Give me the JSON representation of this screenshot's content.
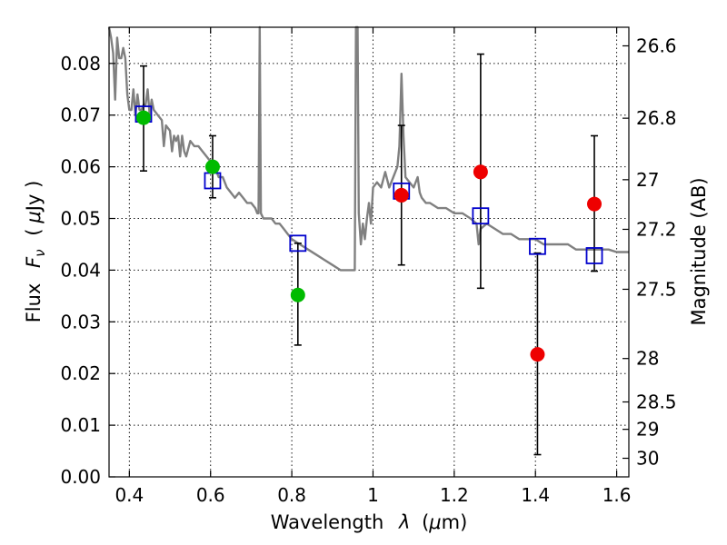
{
  "chart_data": {
    "type": "scatter",
    "xlabel_prefix": "Wavelength",
    "xlabel_symbol": "λ",
    "xlabel_unit_pre": "(",
    "xlabel_unit_mu": "μ",
    "xlabel_unit_post": "m)",
    "ylabel_prefix": "Flux",
    "ylabel_symbol": "F",
    "ylabel_symbol_sub": "ν",
    "ylabel_unit_pre": "(",
    "ylabel_unit_mu": "μ",
    "ylabel_unit_post": "Jy )",
    "ylabel_right": "Magnitude (AB)",
    "xlim": [
      0.35,
      1.63
    ],
    "ylim": [
      0.0,
      0.087
    ],
    "x_ticks": [
      {
        "value": 0.4,
        "label": "0.4"
      },
      {
        "value": 0.6,
        "label": "0.6"
      },
      {
        "value": 0.8,
        "label": "0.8"
      },
      {
        "value": 1.0,
        "label": "1"
      },
      {
        "value": 1.2,
        "label": "1.2"
      },
      {
        "value": 1.4,
        "label": "1.4"
      },
      {
        "value": 1.6,
        "label": "1.6"
      }
    ],
    "y_ticks": [
      {
        "value": 0.0,
        "label": "0.00"
      },
      {
        "value": 0.01,
        "label": "0.01"
      },
      {
        "value": 0.02,
        "label": "0.02"
      },
      {
        "value": 0.03,
        "label": "0.03"
      },
      {
        "value": 0.04,
        "label": "0.04"
      },
      {
        "value": 0.05,
        "label": "0.05"
      },
      {
        "value": 0.06,
        "label": "0.06"
      },
      {
        "value": 0.07,
        "label": "0.07"
      },
      {
        "value": 0.08,
        "label": "0.08"
      }
    ],
    "right_ticks": [
      {
        "flux": 0.0834,
        "label": "26.6"
      },
      {
        "flux": 0.0694,
        "label": "26.8"
      },
      {
        "flux": 0.0575,
        "label": "27"
      },
      {
        "flux": 0.0479,
        "label": "27.2"
      },
      {
        "flux": 0.0363,
        "label": "27.5"
      },
      {
        "flux": 0.0229,
        "label": "28"
      },
      {
        "flux": 0.0145,
        "label": "28.5"
      },
      {
        "flux": 0.0092,
        "label": "29"
      },
      {
        "flux": 0.0036,
        "label": "30"
      }
    ],
    "grid": true,
    "series": [
      {
        "kind": "line",
        "color": "#808080",
        "points": [
          [
            0.35,
            0.088
          ],
          [
            0.355,
            0.085
          ],
          [
            0.36,
            0.082
          ],
          [
            0.365,
            0.073
          ],
          [
            0.37,
            0.085
          ],
          [
            0.375,
            0.081
          ],
          [
            0.38,
            0.081
          ],
          [
            0.385,
            0.083
          ],
          [
            0.39,
            0.081
          ],
          [
            0.395,
            0.074
          ],
          [
            0.4,
            0.071
          ],
          [
            0.405,
            0.071
          ],
          [
            0.41,
            0.075
          ],
          [
            0.415,
            0.07
          ],
          [
            0.42,
            0.074
          ],
          [
            0.425,
            0.071
          ],
          [
            0.43,
            0.071
          ],
          [
            0.435,
            0.072
          ],
          [
            0.44,
            0.072
          ],
          [
            0.445,
            0.075
          ],
          [
            0.45,
            0.07
          ],
          [
            0.455,
            0.073
          ],
          [
            0.46,
            0.071
          ],
          [
            0.47,
            0.07
          ],
          [
            0.48,
            0.069
          ],
          [
            0.485,
            0.064
          ],
          [
            0.49,
            0.068
          ],
          [
            0.5,
            0.067
          ],
          [
            0.505,
            0.063
          ],
          [
            0.51,
            0.066
          ],
          [
            0.515,
            0.065
          ],
          [
            0.52,
            0.066
          ],
          [
            0.525,
            0.062
          ],
          [
            0.53,
            0.066
          ],
          [
            0.535,
            0.063
          ],
          [
            0.54,
            0.062
          ],
          [
            0.55,
            0.065
          ],
          [
            0.56,
            0.064
          ],
          [
            0.57,
            0.064
          ],
          [
            0.58,
            0.063
          ],
          [
            0.59,
            0.062
          ],
          [
            0.6,
            0.061
          ],
          [
            0.61,
            0.06
          ],
          [
            0.62,
            0.058
          ],
          [
            0.63,
            0.058
          ],
          [
            0.64,
            0.056
          ],
          [
            0.65,
            0.055
          ],
          [
            0.66,
            0.054
          ],
          [
            0.67,
            0.055
          ],
          [
            0.68,
            0.054
          ],
          [
            0.69,
            0.053
          ],
          [
            0.7,
            0.053
          ],
          [
            0.71,
            0.052
          ],
          [
            0.715,
            0.051
          ],
          [
            0.718,
            0.051
          ],
          [
            0.721,
            0.088
          ],
          [
            0.724,
            0.051
          ],
          [
            0.73,
            0.05
          ],
          [
            0.74,
            0.05
          ],
          [
            0.75,
            0.05
          ],
          [
            0.76,
            0.049
          ],
          [
            0.77,
            0.049
          ],
          [
            0.78,
            0.048
          ],
          [
            0.79,
            0.047
          ],
          [
            0.8,
            0.046
          ],
          [
            0.82,
            0.045
          ],
          [
            0.84,
            0.044
          ],
          [
            0.86,
            0.043
          ],
          [
            0.88,
            0.042
          ],
          [
            0.9,
            0.041
          ],
          [
            0.92,
            0.04
          ],
          [
            0.94,
            0.04
          ],
          [
            0.955,
            0.04
          ],
          [
            0.958,
            0.088
          ],
          [
            0.962,
            0.088
          ],
          [
            0.965,
            0.051
          ],
          [
            0.97,
            0.045
          ],
          [
            0.975,
            0.049
          ],
          [
            0.98,
            0.046
          ],
          [
            0.985,
            0.05
          ],
          [
            0.99,
            0.053
          ],
          [
            0.995,
            0.049
          ],
          [
            1.0,
            0.056
          ],
          [
            1.01,
            0.057
          ],
          [
            1.02,
            0.056
          ],
          [
            1.03,
            0.059
          ],
          [
            1.04,
            0.056
          ],
          [
            1.05,
            0.058
          ],
          [
            1.06,
            0.06
          ],
          [
            1.065,
            0.064
          ],
          [
            1.07,
            0.078
          ],
          [
            1.075,
            0.066
          ],
          [
            1.08,
            0.058
          ],
          [
            1.09,
            0.057
          ],
          [
            1.1,
            0.056
          ],
          [
            1.11,
            0.058
          ],
          [
            1.115,
            0.055
          ],
          [
            1.12,
            0.054
          ],
          [
            1.13,
            0.053
          ],
          [
            1.14,
            0.053
          ],
          [
            1.16,
            0.052
          ],
          [
            1.18,
            0.052
          ],
          [
            1.2,
            0.051
          ],
          [
            1.22,
            0.051
          ],
          [
            1.24,
            0.05
          ],
          [
            1.255,
            0.049
          ],
          [
            1.26,
            0.045
          ],
          [
            1.265,
            0.048
          ],
          [
            1.28,
            0.049
          ],
          [
            1.3,
            0.048
          ],
          [
            1.32,
            0.047
          ],
          [
            1.34,
            0.047
          ],
          [
            1.36,
            0.046
          ],
          [
            1.38,
            0.046
          ],
          [
            1.4,
            0.046
          ],
          [
            1.42,
            0.045
          ],
          [
            1.44,
            0.045
          ],
          [
            1.46,
            0.045
          ],
          [
            1.48,
            0.045
          ],
          [
            1.5,
            0.044
          ],
          [
            1.52,
            0.044
          ],
          [
            1.54,
            0.044
          ],
          [
            1.56,
            0.044
          ],
          [
            1.58,
            0.044
          ],
          [
            1.6,
            0.0435
          ],
          [
            1.63,
            0.0435
          ]
        ]
      },
      {
        "kind": "model_points",
        "color": "#0000cc",
        "points": [
          [
            0.435,
            0.0702
          ],
          [
            0.605,
            0.0573
          ],
          [
            0.815,
            0.0452
          ],
          [
            1.07,
            0.0553
          ],
          [
            1.265,
            0.0505
          ],
          [
            1.405,
            0.0446
          ],
          [
            1.545,
            0.0428
          ]
        ]
      },
      {
        "kind": "observations",
        "points": [
          {
            "x": 0.435,
            "y": 0.0695,
            "err_low": 0.0592,
            "err_high": 0.0795,
            "color": "#00bb00"
          },
          {
            "x": 0.605,
            "y": 0.06,
            "err_low": 0.054,
            "err_high": 0.066,
            "color": "#00bb00"
          },
          {
            "x": 0.815,
            "y": 0.0352,
            "err_low": 0.0255,
            "err_high": 0.0452,
            "color": "#00bb00"
          },
          {
            "x": 1.07,
            "y": 0.0545,
            "err_low": 0.041,
            "err_high": 0.068,
            "color": "#ee0000"
          },
          {
            "x": 1.265,
            "y": 0.059,
            "err_low": 0.0365,
            "err_high": 0.0818,
            "color": "#ee0000"
          },
          {
            "x": 1.405,
            "y": 0.0237,
            "err_low": 0.0043,
            "err_high": 0.0433,
            "color": "#ee0000"
          },
          {
            "x": 1.545,
            "y": 0.0528,
            "err_low": 0.0398,
            "err_high": 0.066,
            "color": "#ee0000"
          }
        ]
      }
    ]
  }
}
